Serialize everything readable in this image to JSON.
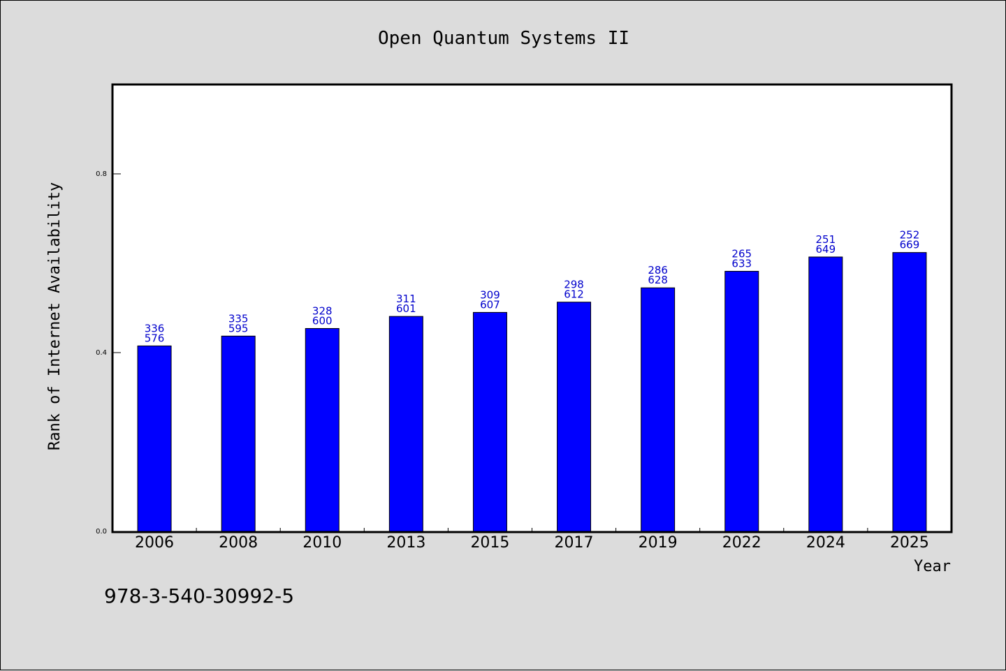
{
  "chart_data": {
    "type": "bar",
    "title": "Open Quantum Systems II",
    "xlabel": "Year",
    "ylabel": "Rank of Internet Availability",
    "ylim": [
      0,
      1
    ],
    "yticks": [
      0.0,
      0.4,
      0.8
    ],
    "ytick_labels": [
      "0.0",
      "0.4",
      "0.8"
    ],
    "categories": [
      "2006",
      "2008",
      "2010",
      "2013",
      "2015",
      "2017",
      "2019",
      "2022",
      "2024",
      "2025"
    ],
    "values": [
      0.415,
      0.437,
      0.454,
      0.481,
      0.49,
      0.513,
      0.545,
      0.582,
      0.614,
      0.624
    ],
    "data_labels_top": [
      "336",
      "335",
      "328",
      "311",
      "309",
      "298",
      "286",
      "265",
      "251",
      "252"
    ],
    "data_labels_bottom": [
      "576",
      "595",
      "600",
      "601",
      "607",
      "612",
      "628",
      "633",
      "649",
      "669"
    ],
    "bar_color": "#0000ff",
    "label_color": "#0000cc",
    "grid": false,
    "legend": "none"
  },
  "footer": {
    "text": "978-3-540-30992-5"
  }
}
